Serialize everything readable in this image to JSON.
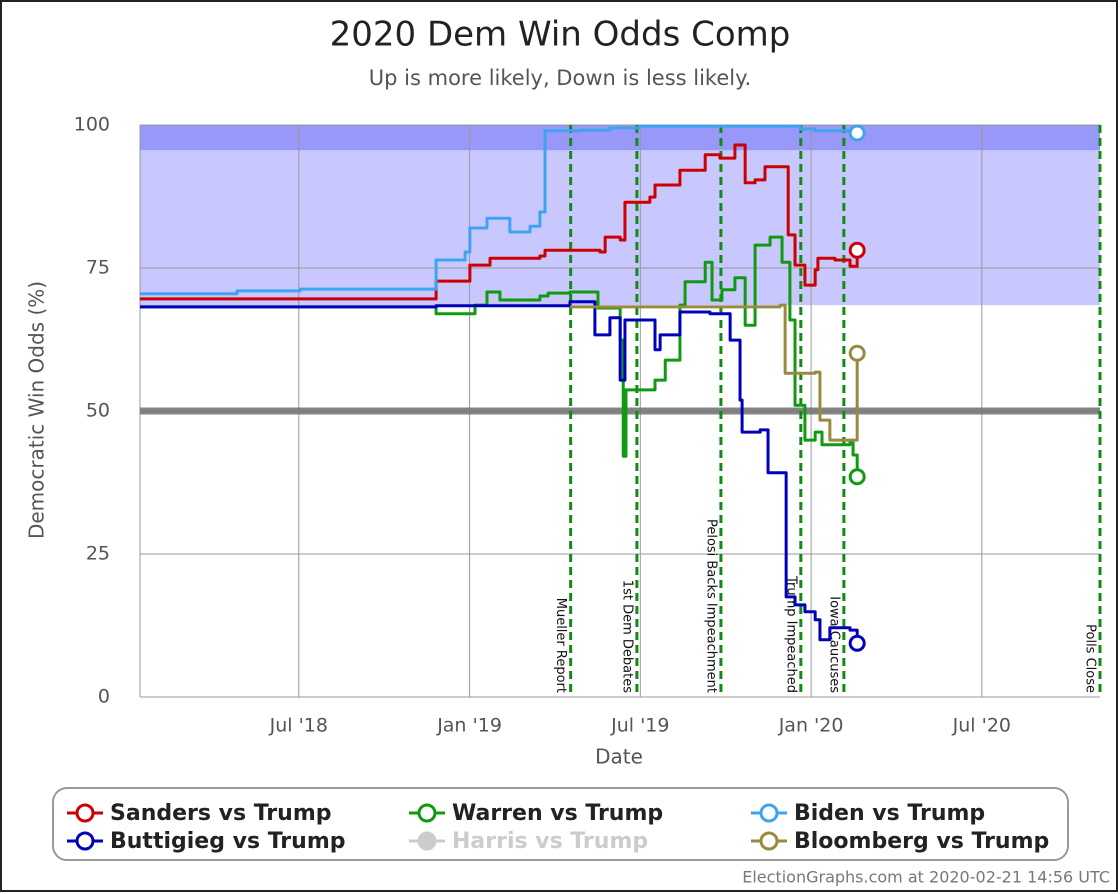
{
  "chart_data": {
    "type": "line",
    "step": "after",
    "title": "2020 Dem Win Odds Comp",
    "subtitle": "Up is more likely, Down is less likely.",
    "x_label": "Date",
    "y_label": "Democratic Win Odds (%)",
    "footer": "ElectionGraphs.com at 2020-02-21 14:56 UTC",
    "xlim": [
      2018.035,
      2020.846
    ],
    "ylim": [
      0,
      100
    ],
    "xticks": [
      {
        "value": 2018.5,
        "label": "Jul '18"
      },
      {
        "value": 2019.0,
        "label": "Jan '19"
      },
      {
        "value": 2019.5,
        "label": "Jul '19"
      },
      {
        "value": 2020.0,
        "label": "Jan '20"
      },
      {
        "value": 2020.5,
        "label": "Jul '20"
      }
    ],
    "yticks": [
      0,
      25,
      50,
      75,
      100
    ],
    "grid": true,
    "hline": 50,
    "bands": [
      {
        "from": 68.5,
        "to": 100,
        "color": "#c8c8ff"
      },
      {
        "from": 95.6,
        "to": 100,
        "color": "#9898f8"
      }
    ],
    "events": [
      {
        "x": 2019.296,
        "label": "Mueller Report"
      },
      {
        "x": 2019.49,
        "label": "1st Dem Debates"
      },
      {
        "x": 2019.736,
        "label": "Pelosi Backs Impeachment"
      },
      {
        "x": 2019.97,
        "label": "Trump Impeached"
      },
      {
        "x": 2020.096,
        "label": "Iowa Caucuses"
      },
      {
        "x": 2020.846,
        "label": "Polls Close"
      }
    ],
    "series": [
      {
        "name": "Sanders vs Trump",
        "color": "#cc0000",
        "x": [
          2018.035,
          2018.902,
          2019.001,
          2019.06,
          2019.206,
          2019.221,
          2019.382,
          2019.397,
          2019.441,
          2019.455,
          2019.528,
          2019.543,
          2019.616,
          2019.69,
          2019.733,
          2019.777,
          2019.807,
          2019.836,
          2019.865,
          2019.933,
          2019.953,
          2019.982,
          2020.012,
          2020.02,
          2020.07,
          2020.114,
          2020.135
        ],
        "values": [
          69.6,
          72.7,
          75.5,
          76.7,
          77.1,
          78.1,
          77.8,
          80.4,
          79.9,
          86.5,
          87.4,
          89.5,
          92.1,
          94.8,
          94.2,
          96.5,
          89.9,
          90.4,
          92.7,
          80.8,
          75.5,
          72.0,
          74.7,
          76.7,
          76.4,
          75.3,
          78.1
        ]
      },
      {
        "name": "Warren vs Trump",
        "color": "#119911",
        "x": [
          2018.035,
          2018.902,
          2019.016,
          2019.051,
          2019.089,
          2019.206,
          2019.23,
          2019.294,
          2019.376,
          2019.441,
          2019.45,
          2019.458,
          2019.543,
          2019.573,
          2019.616,
          2019.631,
          2019.69,
          2019.71,
          2019.739,
          2019.777,
          2019.807,
          2019.836,
          2019.88,
          2019.915,
          2019.938,
          2019.953,
          2019.982,
          2020.012,
          2020.032,
          2020.114,
          2020.123,
          2020.135
        ],
        "values": [
          68.2,
          67.0,
          68.5,
          70.8,
          69.4,
          70.1,
          70.6,
          70.8,
          68.0,
          62.4,
          42.1,
          53.7,
          55.4,
          58.9,
          68.5,
          72.6,
          76.0,
          69.4,
          71.2,
          73.3,
          65.0,
          79.0,
          80.4,
          76.0,
          65.9,
          51.0,
          44.9,
          46.3,
          44.1,
          44.6,
          42.3,
          38.5
        ]
      },
      {
        "name": "Biden vs Trump",
        "color": "#3fa4f0",
        "x": [
          2018.035,
          2018.319,
          2018.504,
          2018.902,
          2018.987,
          2019.001,
          2019.051,
          2019.118,
          2019.177,
          2019.206,
          2019.221,
          2019.323,
          2019.411,
          2019.499,
          2019.938,
          2019.968,
          2020.012,
          2020.135
        ],
        "values": [
          70.5,
          71.0,
          71.3,
          76.4,
          77.8,
          82.0,
          83.7,
          81.3,
          82.3,
          84.8,
          99.0,
          99.1,
          99.5,
          99.8,
          99.8,
          99.3,
          99.0,
          98.6
        ]
      },
      {
        "name": "Buttigieg vs Trump",
        "color": "#0000bb",
        "x": [
          2018.035,
          2018.902,
          2019.294,
          2019.367,
          2019.411,
          2019.441,
          2019.455,
          2019.543,
          2019.558,
          2019.616,
          2019.704,
          2019.763,
          2019.792,
          2019.798,
          2019.851,
          2019.874,
          2019.927,
          2019.953,
          2019.982,
          2020.012,
          2020.026,
          2020.055,
          2020.114,
          2020.135
        ],
        "values": [
          68.2,
          68.4,
          69.1,
          63.3,
          66.3,
          55.4,
          65.9,
          60.7,
          63.3,
          67.3,
          67.0,
          62.4,
          51.9,
          46.3,
          46.7,
          39.2,
          17.5,
          16.1,
          14.9,
          13.5,
          10.0,
          12.1,
          11.7,
          9.4
        ]
      },
      {
        "name": "Harris vs Trump",
        "color": "#cccccc",
        "x": [],
        "values": []
      },
      {
        "name": "Bloomberg vs Trump",
        "color": "#9a8a40",
        "x": [
          2019.294,
          2019.909,
          2019.924,
          2020.012,
          2020.026,
          2020.055,
          2020.123,
          2020.135
        ],
        "values": [
          68.2,
          68.5,
          56.6,
          56.8,
          48.4,
          44.9,
          44.9,
          60.1
        ]
      }
    ]
  }
}
